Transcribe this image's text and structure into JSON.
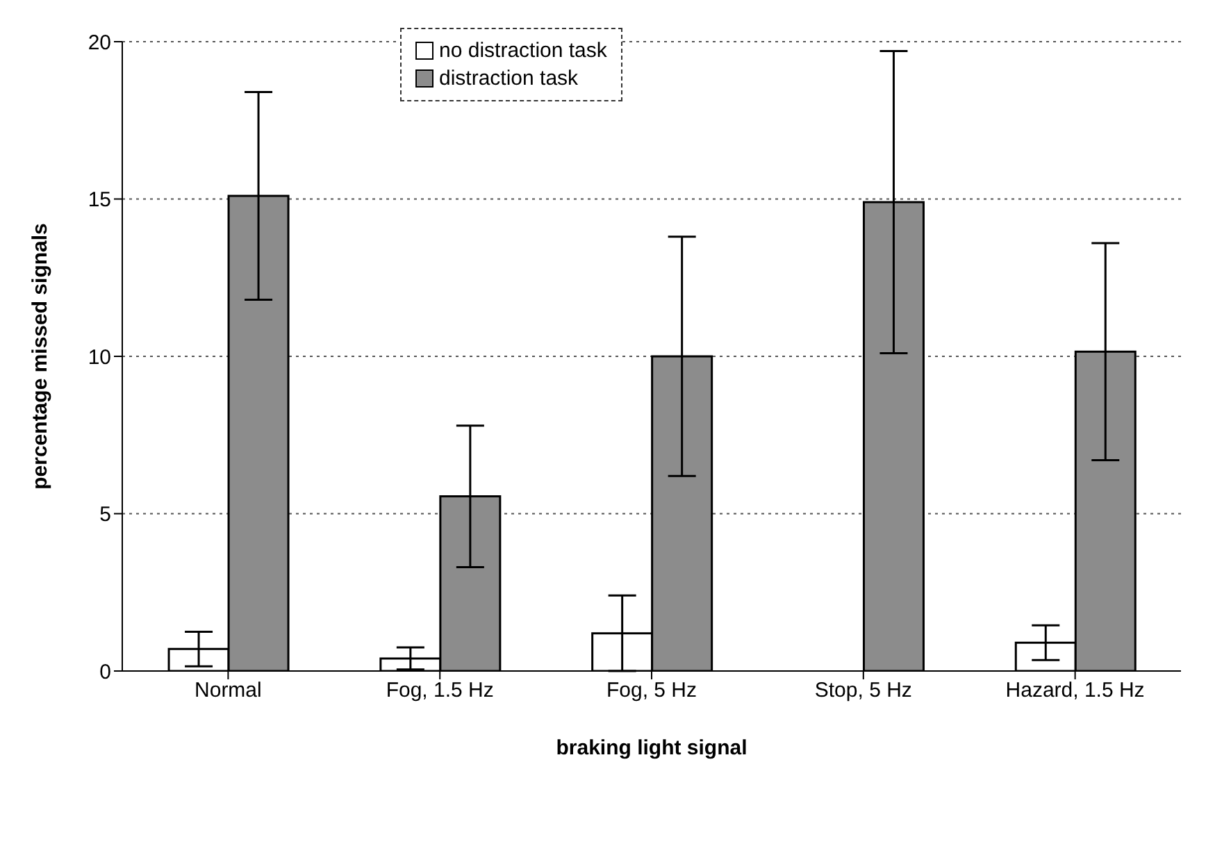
{
  "chart_data": {
    "type": "bar",
    "xlabel": "braking light signal",
    "ylabel": "percentage missed signals",
    "categories": [
      "Normal",
      "Fog, 1.5 Hz",
      "Fog, 5 Hz",
      "Stop, 5 Hz",
      "Hazard, 1.5 Hz"
    ],
    "series": [
      {
        "name": "no distraction task",
        "color": "#ffffff",
        "values": [
          0.7,
          0.4,
          1.2,
          0,
          0.9
        ],
        "errors": [
          0.55,
          0.35,
          1.2,
          null,
          0.55
        ]
      },
      {
        "name": "distraction task",
        "color": "#8c8c8c",
        "values": [
          15.1,
          5.55,
          10.0,
          14.9,
          10.15
        ],
        "errors": [
          3.3,
          2.25,
          3.8,
          4.8,
          3.45
        ]
      }
    ],
    "ylim": [
      0,
      20
    ],
    "yticks": [
      0,
      5,
      10,
      15,
      20
    ],
    "grid": "y",
    "legend": "top left"
  }
}
